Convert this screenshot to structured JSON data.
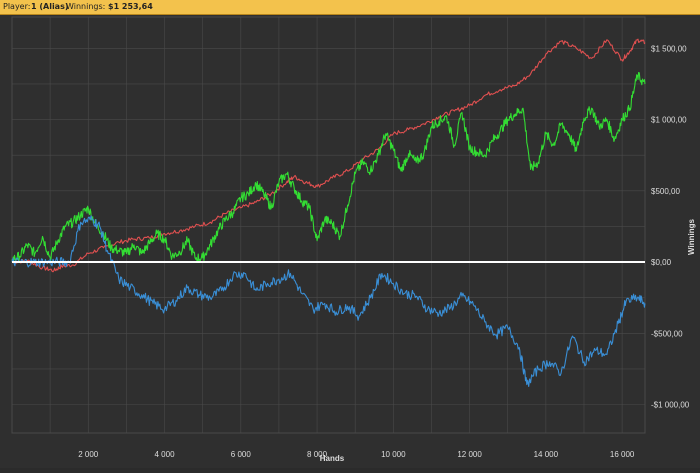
{
  "header": {
    "player_label": "Player:",
    "player_name": "1 (Alias)",
    "winnings_label": "Winnings:",
    "winnings_value": "$1 253,64"
  },
  "colors": {
    "background": "#2f2f2f",
    "header_bg": "#f3c24c",
    "grid": "#4a4a4a",
    "axis_text": "#dddddd",
    "zero_line": "#ffffff"
  },
  "chart_data": {
    "type": "line",
    "xlabel": "Hands",
    "ylabel": "Winnings",
    "xlim": [
      0,
      16600
    ],
    "ylim": [
      -1200,
      1720
    ],
    "x_ticks": [
      2000,
      4000,
      6000,
      8000,
      10000,
      12000,
      14000,
      16000
    ],
    "x_tick_labels": [
      "2 000",
      "4 000",
      "6 000",
      "8 000",
      "10 000",
      "12 000",
      "14 000",
      "16 000"
    ],
    "y_ticks": [
      1500,
      1000,
      500,
      0,
      -500,
      -1000
    ],
    "y_tick_labels": [
      "$1 500,00",
      "$1 000,00",
      "$500,00",
      "$0,00",
      "-$500,00",
      "-$1 000,00"
    ],
    "grid": true,
    "zero_line": true,
    "series": [
      {
        "color": "#e05050",
        "x": [
          0,
          400,
          800,
          1100,
          1300,
          1600,
          2000,
          2400,
          2800,
          3200,
          3600,
          4000,
          4400,
          4800,
          5200,
          5600,
          6000,
          6400,
          6800,
          7200,
          7400,
          7700,
          8000,
          8400,
          8800,
          9200,
          9600,
          10000,
          10400,
          10800,
          11200,
          11600,
          12000,
          12400,
          12800,
          13200,
          13600,
          14000,
          14400,
          14800,
          15200,
          15600,
          16000,
          16200,
          16400,
          16600
        ],
        "y": [
          0,
          10,
          -40,
          -60,
          -30,
          -20,
          60,
          100,
          140,
          160,
          170,
          200,
          220,
          250,
          280,
          340,
          380,
          420,
          480,
          560,
          600,
          560,
          530,
          590,
          640,
          720,
          790,
          900,
          930,
          970,
          1020,
          1060,
          1100,
          1170,
          1210,
          1240,
          1320,
          1460,
          1550,
          1500,
          1430,
          1560,
          1420,
          1480,
          1560,
          1540
        ]
      },
      {
        "color": "#33dd33",
        "x": [
          0,
          200,
          400,
          600,
          800,
          1000,
          1200,
          1400,
          1600,
          1800,
          2000,
          2200,
          2400,
          2600,
          2800,
          3000,
          3200,
          3400,
          3600,
          3800,
          4000,
          4200,
          4400,
          4600,
          4800,
          5000,
          5200,
          5400,
          5600,
          5800,
          6000,
          6200,
          6400,
          6600,
          6800,
          7000,
          7200,
          7400,
          7600,
          7800,
          8000,
          8200,
          8400,
          8600,
          8800,
          9000,
          9200,
          9400,
          9600,
          9800,
          10000,
          10200,
          10400,
          10600,
          10800,
          11000,
          11200,
          11400,
          11600,
          11800,
          12000,
          12200,
          12400,
          12600,
          12800,
          13000,
          13200,
          13400,
          13600,
          13800,
          14000,
          14200,
          14400,
          14600,
          14800,
          15000,
          15200,
          15400,
          15600,
          15800,
          16000,
          16200,
          16400,
          16600
        ],
        "y": [
          20,
          40,
          120,
          60,
          180,
          30,
          150,
          250,
          280,
          330,
          380,
          260,
          200,
          100,
          80,
          60,
          120,
          60,
          130,
          200,
          160,
          40,
          70,
          150,
          30,
          30,
          120,
          220,
          300,
          350,
          450,
          480,
          550,
          480,
          380,
          560,
          620,
          520,
          430,
          380,
          150,
          300,
          270,
          180,
          400,
          620,
          700,
          640,
          750,
          900,
          790,
          640,
          760,
          700,
          760,
          950,
          990,
          1020,
          820,
          1050,
          800,
          770,
          750,
          850,
          920,
          1000,
          1040,
          1080,
          650,
          700,
          900,
          820,
          970,
          900,
          780,
          1010,
          1080,
          950,
          1000,
          860,
          1000,
          1080,
          1310,
          1250
        ]
      },
      {
        "color": "#3a8fd6",
        "x": [
          0,
          300,
          600,
          900,
          1200,
          1500,
          1800,
          2100,
          2300,
          2500,
          2800,
          3100,
          3400,
          3700,
          4000,
          4300,
          4600,
          4900,
          5200,
          5500,
          5800,
          6100,
          6400,
          6700,
          7000,
          7300,
          7600,
          7900,
          8200,
          8500,
          8800,
          9100,
          9400,
          9700,
          10000,
          10300,
          10600,
          10900,
          11200,
          11500,
          11800,
          12100,
          12400,
          12700,
          13000,
          13300,
          13500,
          13800,
          14100,
          14400,
          14700,
          15000,
          15300,
          15600,
          15900,
          16100,
          16400,
          16600
        ],
        "y": [
          0,
          0,
          0,
          0,
          0,
          0,
          280,
          300,
          250,
          80,
          -120,
          -180,
          -230,
          -290,
          -330,
          -270,
          -180,
          -230,
          -250,
          -200,
          -90,
          -80,
          -200,
          -150,
          -120,
          -80,
          -220,
          -330,
          -290,
          -350,
          -310,
          -380,
          -250,
          -80,
          -150,
          -220,
          -240,
          -330,
          -360,
          -320,
          -240,
          -300,
          -420,
          -510,
          -460,
          -600,
          -860,
          -750,
          -700,
          -780,
          -520,
          -700,
          -620,
          -650,
          -430,
          -280,
          -250,
          -290
        ]
      }
    ]
  }
}
